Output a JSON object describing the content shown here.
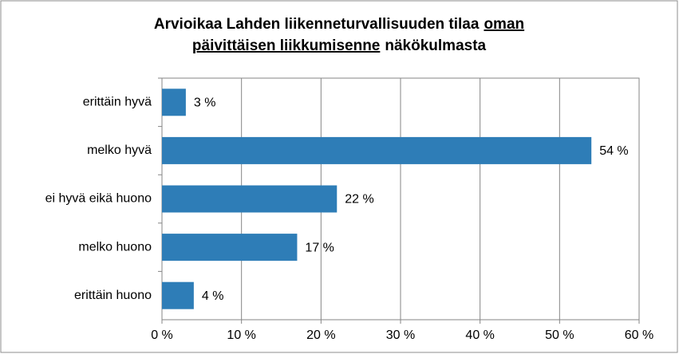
{
  "chart_data": {
    "type": "bar",
    "orientation": "horizontal",
    "title_parts": [
      {
        "text": "Arvioikaa Lahden liikenneturvallisuuden tilaa",
        "underline": false
      },
      {
        "text": "oman",
        "underline": true
      },
      {
        "text": "päivittäisen liikkumisenne",
        "underline": true
      },
      {
        "text": "näkökulmasta",
        "underline": false
      }
    ],
    "categories": [
      "erittäin hyvä",
      "melko hyvä",
      "ei hyvä eikä huono",
      "melko huono",
      "erittäin huono"
    ],
    "values": [
      3,
      54,
      22,
      17,
      4
    ],
    "value_labels": [
      "3 %",
      "54 %",
      "22 %",
      "17 %",
      "4 %"
    ],
    "color": "#2e7db7",
    "xlim": [
      0,
      60
    ],
    "xticks": [
      {
        "value": 0,
        "label": "0 %"
      },
      {
        "value": 10,
        "label": "10 %"
      },
      {
        "value": 20,
        "label": "20 %"
      },
      {
        "value": 30,
        "label": "30 %"
      },
      {
        "value": 40,
        "label": "40 %"
      },
      {
        "value": 50,
        "label": "50 %"
      },
      {
        "value": 60,
        "label": "60 %"
      }
    ],
    "grid": true
  }
}
